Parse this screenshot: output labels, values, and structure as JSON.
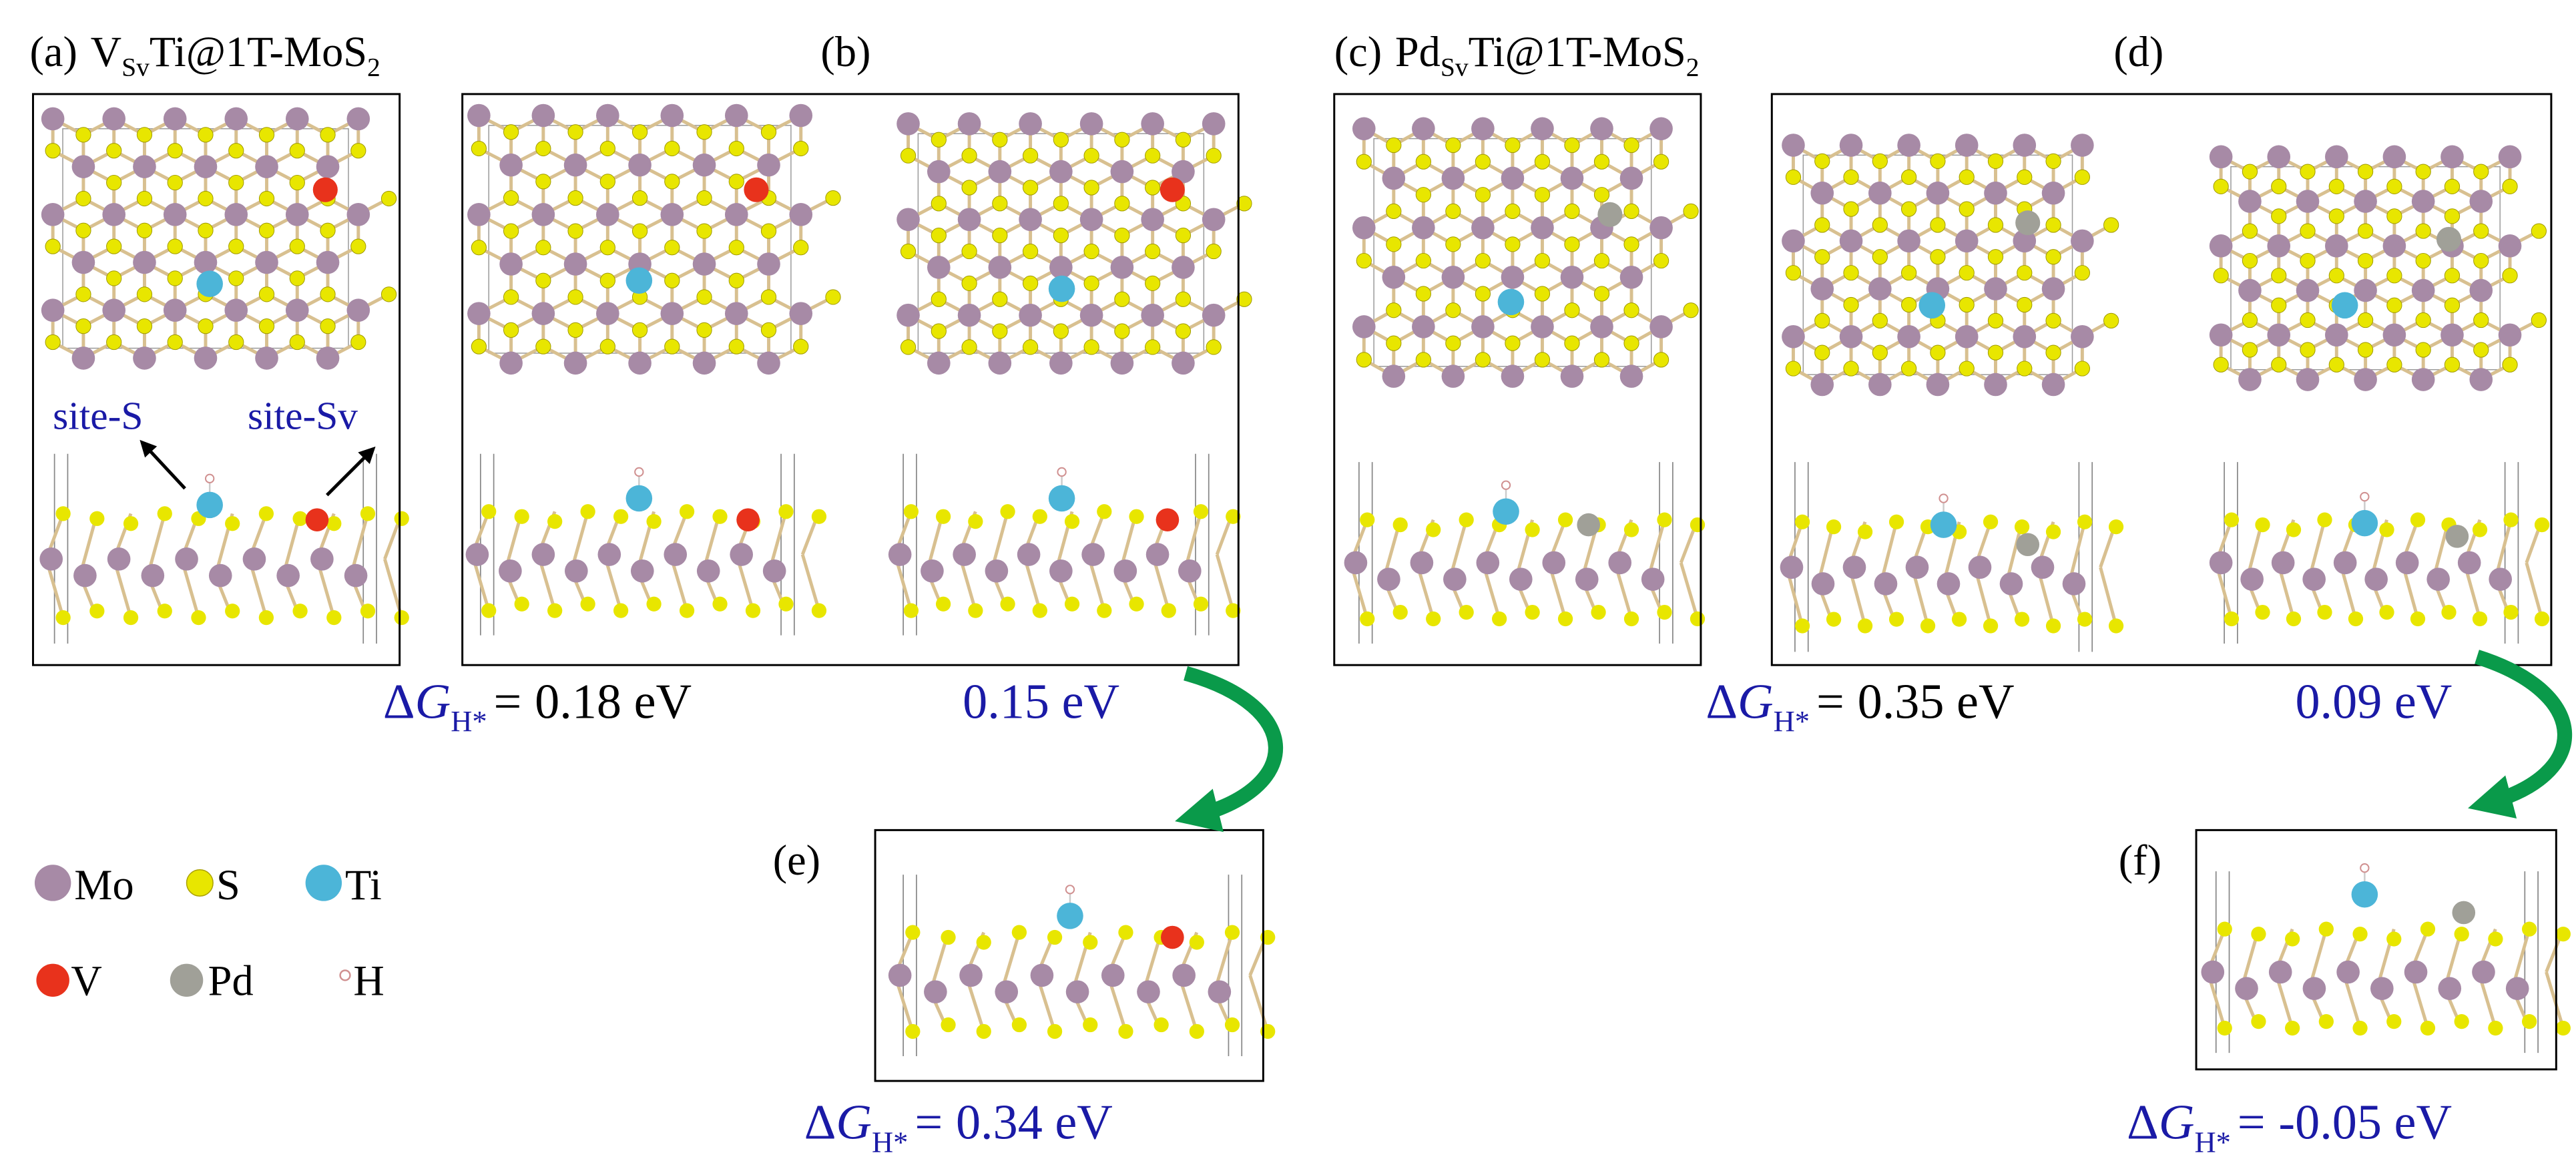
{
  "panels": [
    {
      "label": "(a)",
      "title": {
        "element": "V",
        "sub": "Sv",
        "rest": "Ti@1T-MoS",
        "sub2": "2"
      },
      "sites": [
        "site-S",
        "site-Sv"
      ]
    },
    {
      "label": "(b)"
    },
    {
      "label": "(c)",
      "title": {
        "element": "Pd",
        "sub": "Sv",
        "rest": "Ti@1T-MoS",
        "sub2": "2"
      }
    },
    {
      "label": "(d)"
    },
    {
      "label": "(e)"
    },
    {
      "label": "(f)"
    }
  ],
  "energy": {
    "delta": "Δ",
    "var": "G",
    "sub": "H*",
    "eq": "=",
    "items": [
      "0.18 eV",
      "0.15 eV",
      "0.35 eV",
      "0.09 eV",
      "0.34 eV",
      "-0.05 eV"
    ]
  },
  "legend": [
    "Mo",
    "S",
    "Ti",
    "V",
    "Pd",
    "H"
  ]
}
